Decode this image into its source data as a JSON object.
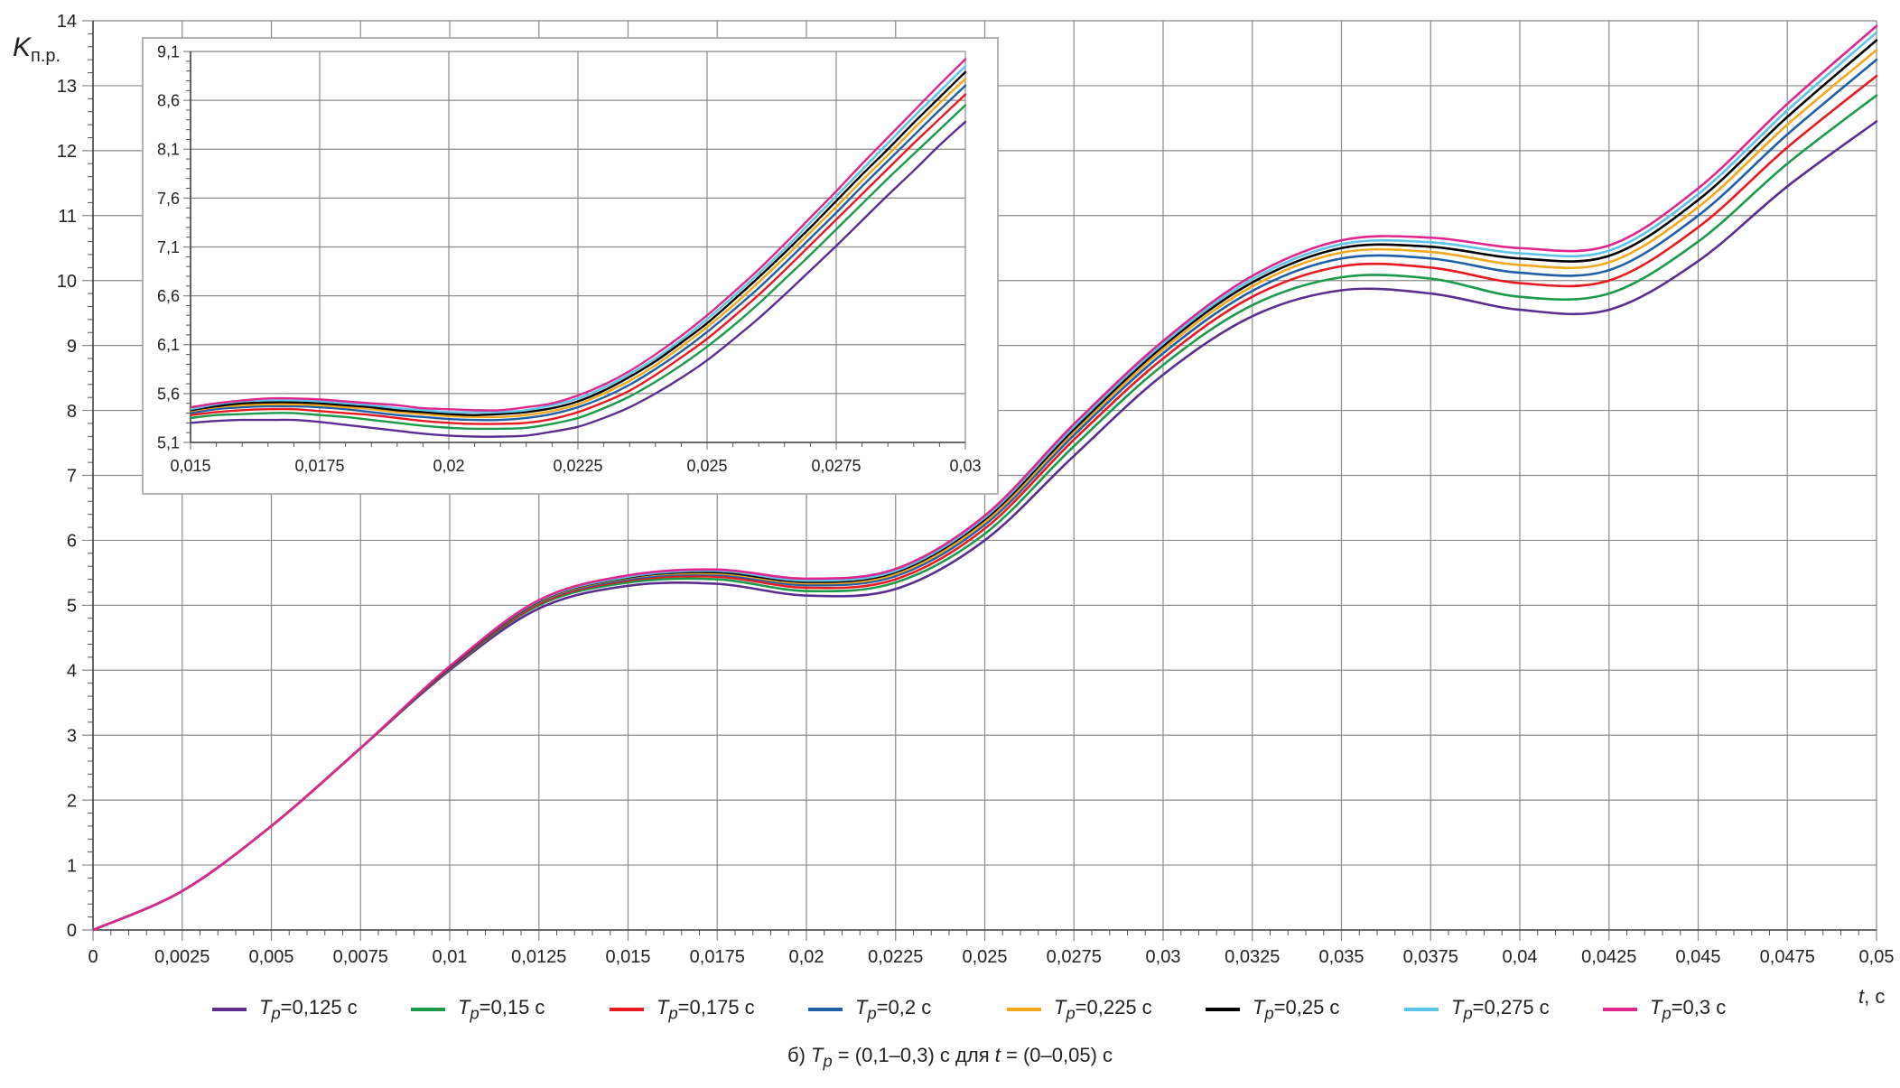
{
  "chart_data": [
    {
      "type": "line",
      "title": "",
      "xlabel": "t, с",
      "ylabel": "Kп.р.",
      "xlim": [
        0,
        0.05
      ],
      "ylim": [
        0,
        14
      ],
      "grid": true,
      "x_ticks": [
        "0",
        "0,0025",
        "0,005",
        "0,0075",
        "0,01",
        "0,0125",
        "0,015",
        "0,0175",
        "0,02",
        "0,0225",
        "0,025",
        "0,0275",
        "0,03",
        "0,0325",
        "0,035",
        "0,0375",
        "0,04",
        "0,0425",
        "0,045",
        "0,0475",
        "0,05"
      ],
      "y_ticks": [
        "0",
        "1",
        "2",
        "3",
        "4",
        "5",
        "6",
        "7",
        "8",
        "9",
        "10",
        "11",
        "12",
        "13",
        "14"
      ],
      "x": [
        0,
        0.0025,
        0.005,
        0.0075,
        0.01,
        0.0125,
        0.015,
        0.0175,
        0.02,
        0.0225,
        0.025,
        0.0275,
        0.03,
        0.0325,
        0.035,
        0.0375,
        0.04,
        0.0425,
        0.045,
        0.0475,
        0.05
      ],
      "series": [
        {
          "name": "Tp=0,125 с",
          "color": "#5b2d90",
          "values": [
            0,
            0.6,
            1.6,
            2.8,
            4.0,
            4.95,
            5.3,
            5.33,
            5.15,
            5.25,
            6.0,
            7.3,
            8.55,
            9.45,
            9.85,
            9.8,
            9.55,
            9.55,
            10.3,
            11.45,
            12.45
          ]
        },
        {
          "name": "Tp=0,15 с",
          "color": "#1a9a4a",
          "values": [
            0,
            0.6,
            1.6,
            2.8,
            4.02,
            5.0,
            5.35,
            5.4,
            5.22,
            5.35,
            6.1,
            7.45,
            8.7,
            9.62,
            10.05,
            10.03,
            9.75,
            9.8,
            10.6,
            11.8,
            12.85
          ]
        },
        {
          "name": "Tp=0,175 с",
          "color": "#e8191f",
          "values": [
            0,
            0.6,
            1.6,
            2.8,
            4.03,
            5.02,
            5.38,
            5.44,
            5.27,
            5.4,
            6.18,
            7.55,
            8.8,
            9.75,
            10.22,
            10.2,
            9.96,
            10.0,
            10.82,
            12.05,
            13.15
          ]
        },
        {
          "name": "Tp=0,2 с",
          "color": "#1f5fa8",
          "values": [
            0,
            0.6,
            1.6,
            2.8,
            4.04,
            5.04,
            5.4,
            5.47,
            5.31,
            5.45,
            6.24,
            7.62,
            8.88,
            9.84,
            10.34,
            10.34,
            10.12,
            10.16,
            11.0,
            12.25,
            13.4
          ]
        },
        {
          "name": "Tp=0,225 с",
          "color": "#f2a81c",
          "values": [
            0,
            0.6,
            1.6,
            2.8,
            4.05,
            5.05,
            5.42,
            5.49,
            5.34,
            5.48,
            6.28,
            7.67,
            8.94,
            9.91,
            10.43,
            10.44,
            10.24,
            10.28,
            11.13,
            12.4,
            13.55
          ]
        },
        {
          "name": "Tp=0,25 с",
          "color": "#000000",
          "values": [
            0,
            0.6,
            1.6,
            2.8,
            4.05,
            5.06,
            5.43,
            5.51,
            5.36,
            5.51,
            6.32,
            7.71,
            8.99,
            9.97,
            10.5,
            10.52,
            10.34,
            10.38,
            11.24,
            12.52,
            13.7
          ]
        },
        {
          "name": "Tp=0,275 с",
          "color": "#5bc4e8",
          "values": [
            0,
            0.6,
            1.6,
            2.8,
            4.06,
            5.07,
            5.44,
            5.53,
            5.38,
            5.53,
            6.35,
            7.75,
            9.03,
            10.02,
            10.56,
            10.59,
            10.42,
            10.46,
            11.33,
            12.62,
            13.82
          ]
        },
        {
          "name": "Tp=0,3 с",
          "color": "#e0258f",
          "values": [
            0,
            0.6,
            1.6,
            2.8,
            4.06,
            5.08,
            5.46,
            5.55,
            5.41,
            5.56,
            6.38,
            7.79,
            9.07,
            10.07,
            10.62,
            10.66,
            10.5,
            10.54,
            11.42,
            12.72,
            13.92
          ]
        }
      ]
    },
    {
      "type": "line",
      "title": "",
      "xlabel": "",
      "ylabel": "",
      "xlim": [
        0.015,
        0.03
      ],
      "ylim": [
        5.1,
        9.1
      ],
      "grid": true,
      "x_ticks": [
        "0,015",
        "0,0175",
        "0,02",
        "0,0225",
        "0,025",
        "0,0275",
        "0,03"
      ],
      "y_ticks": [
        "5,1",
        "5,6",
        "6,1",
        "6,6",
        "7,1",
        "7,6",
        "8,1",
        "8,6",
        "9,1"
      ],
      "x": [
        0.015,
        0.0155,
        0.016,
        0.0165,
        0.017,
        0.0175,
        0.018,
        0.0185,
        0.019,
        0.0195,
        0.02,
        0.0205,
        0.021,
        0.0215,
        0.022,
        0.0225,
        0.023,
        0.0235,
        0.024,
        0.0245,
        0.025,
        0.0255,
        0.026,
        0.0265,
        0.027,
        0.0275,
        0.028,
        0.0285,
        0.029,
        0.0295,
        0.03
      ],
      "series": [
        {
          "name": "Tp=0,125 с",
          "color": "#5b2d90",
          "values": [
            5.3,
            5.32,
            5.33,
            5.33,
            5.33,
            5.31,
            5.28,
            5.25,
            5.22,
            5.19,
            5.17,
            5.16,
            5.16,
            5.17,
            5.21,
            5.26,
            5.35,
            5.46,
            5.6,
            5.76,
            5.94,
            6.15,
            6.37,
            6.61,
            6.86,
            7.11,
            7.37,
            7.63,
            7.88,
            8.14,
            8.38
          ]
        },
        {
          "name": "Tp=0,15 с",
          "color": "#1a9a4a",
          "values": [
            5.35,
            5.38,
            5.39,
            5.4,
            5.4,
            5.38,
            5.36,
            5.33,
            5.3,
            5.27,
            5.25,
            5.24,
            5.24,
            5.25,
            5.29,
            5.35,
            5.45,
            5.57,
            5.72,
            5.89,
            6.08,
            6.29,
            6.52,
            6.77,
            7.02,
            7.28,
            7.54,
            7.8,
            8.05,
            8.3,
            8.55
          ]
        },
        {
          "name": "Tp=0,175 с",
          "color": "#e8191f",
          "values": [
            5.38,
            5.41,
            5.43,
            5.44,
            5.44,
            5.42,
            5.4,
            5.38,
            5.35,
            5.32,
            5.3,
            5.29,
            5.29,
            5.3,
            5.34,
            5.41,
            5.51,
            5.63,
            5.79,
            5.97,
            6.16,
            6.38,
            6.61,
            6.86,
            7.12,
            7.38,
            7.64,
            7.9,
            8.16,
            8.41,
            8.66
          ]
        },
        {
          "name": "Tp=0,2 с",
          "color": "#1f5fa8",
          "values": [
            5.4,
            5.44,
            5.46,
            5.47,
            5.47,
            5.46,
            5.44,
            5.41,
            5.38,
            5.36,
            5.34,
            5.33,
            5.33,
            5.35,
            5.39,
            5.46,
            5.56,
            5.69,
            5.85,
            6.03,
            6.23,
            6.45,
            6.68,
            6.93,
            7.19,
            7.45,
            7.72,
            7.98,
            8.24,
            8.5,
            8.75
          ]
        },
        {
          "name": "Tp=0,225 с",
          "color": "#f2a81c",
          "values": [
            5.42,
            5.46,
            5.48,
            5.49,
            5.49,
            5.48,
            5.46,
            5.44,
            5.41,
            5.39,
            5.37,
            5.36,
            5.36,
            5.38,
            5.42,
            5.49,
            5.6,
            5.73,
            5.89,
            6.08,
            6.28,
            6.5,
            6.74,
            6.99,
            7.25,
            7.51,
            7.78,
            8.04,
            8.31,
            8.57,
            8.82
          ]
        },
        {
          "name": "Tp=0,25 с",
          "color": "#000000",
          "values": [
            5.43,
            5.47,
            5.5,
            5.51,
            5.51,
            5.5,
            5.48,
            5.46,
            5.43,
            5.41,
            5.39,
            5.38,
            5.39,
            5.41,
            5.45,
            5.52,
            5.63,
            5.77,
            5.93,
            6.12,
            6.32,
            6.55,
            6.79,
            7.04,
            7.3,
            7.57,
            7.84,
            8.1,
            8.37,
            8.63,
            8.89
          ]
        },
        {
          "name": "Tp=0,275 с",
          "color": "#5bc4e8",
          "values": [
            5.44,
            5.49,
            5.52,
            5.53,
            5.53,
            5.52,
            5.5,
            5.48,
            5.45,
            5.43,
            5.41,
            5.41,
            5.41,
            5.43,
            5.48,
            5.55,
            5.66,
            5.8,
            5.96,
            6.15,
            6.36,
            6.59,
            6.83,
            7.08,
            7.35,
            7.62,
            7.89,
            8.16,
            8.43,
            8.69,
            8.95
          ]
        },
        {
          "name": "Tp=0,3 с",
          "color": "#e0258f",
          "values": [
            5.46,
            5.5,
            5.53,
            5.55,
            5.55,
            5.54,
            5.52,
            5.5,
            5.48,
            5.45,
            5.44,
            5.43,
            5.43,
            5.46,
            5.5,
            5.58,
            5.69,
            5.83,
            6.0,
            6.19,
            6.4,
            6.63,
            6.87,
            7.13,
            7.4,
            7.67,
            7.95,
            8.22,
            8.49,
            8.76,
            9.02
          ]
        }
      ]
    }
  ],
  "legend": [
    {
      "name": "Tp=0,125 с",
      "symbol": "T",
      "sub": "p",
      "rest": "=0,125 с",
      "color": "#5b2d90"
    },
    {
      "name": "Tp=0,15 с",
      "symbol": "T",
      "sub": "p",
      "rest": "=0,15 с",
      "color": "#1a9a4a"
    },
    {
      "name": "Tp=0,175 с",
      "symbol": "T",
      "sub": "p",
      "rest": "=0,175 с",
      "color": "#e8191f"
    },
    {
      "name": "Tp=0,2 с",
      "symbol": "T",
      "sub": "p",
      "rest": "=0,2 с",
      "color": "#1f5fa8"
    },
    {
      "name": "Tp=0,225 с",
      "symbol": "T",
      "sub": "p",
      "rest": "=0,225 с",
      "color": "#f2a81c"
    },
    {
      "name": "Tp=0,25 с",
      "symbol": "T",
      "sub": "p",
      "rest": "=0,25 с",
      "color": "#000000"
    },
    {
      "name": "Tp=0,275 с",
      "symbol": "T",
      "sub": "p",
      "rest": "=0,275 с",
      "color": "#5bc4e8"
    },
    {
      "name": "Tp=0,3 с",
      "symbol": "T",
      "sub": "p",
      "rest": "=0,3 с",
      "color": "#e0258f"
    }
  ],
  "axis_labels": {
    "y_symbol": "K",
    "y_sub": "п.р.",
    "x_symbol": "t",
    "x_rest": ", с"
  },
  "caption": {
    "prefix": "б) ",
    "symbol": "T",
    "sub": "p",
    "rest": " = (0,1–0,3) с для ",
    "t_symbol": "t",
    "t_rest": " = (0–0,05) с"
  }
}
